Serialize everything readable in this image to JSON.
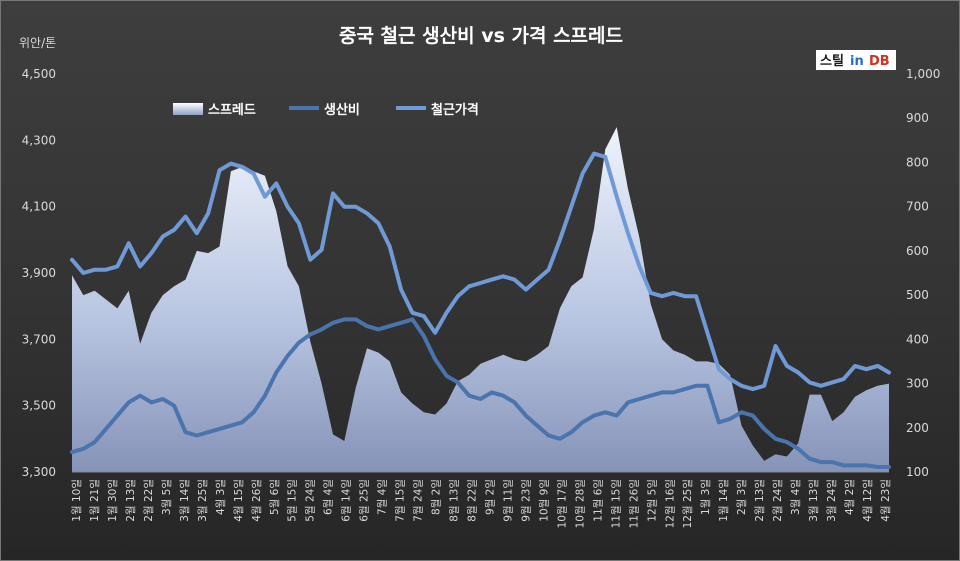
{
  "chart_data": {
    "type": "line",
    "title": "중국 철근 생산비 vs 가격 스프레드",
    "y_left_unit": "위안/톤",
    "y_left_ticks": [
      "3,300",
      "3,500",
      "3,700",
      "3,900",
      "4,100",
      "4,300",
      "4,500"
    ],
    "y_left_range": [
      3300,
      4500
    ],
    "y_right_ticks": [
      "100",
      "200",
      "300",
      "400",
      "500",
      "600",
      "700",
      "800",
      "900",
      "1,000"
    ],
    "y_right_range": [
      100,
      1000
    ],
    "legend_position": "top-left",
    "grid": false,
    "x_labels": [
      "1월 10일",
      "1월 21일",
      "1월 30일",
      "2월 13일",
      "2월 22일",
      "3월 5일",
      "3월 14일",
      "3월 25일",
      "4월 3일",
      "4월 15일",
      "4월 26일",
      "5월 6일",
      "5월 15일",
      "5월 24일",
      "6월 4일",
      "6월 14일",
      "6월 25일",
      "7월 4일",
      "7월 15일",
      "7월 24일",
      "8월 2일",
      "8월 13일",
      "8월 22일",
      "9월 2일",
      "9월 11일",
      "9월 23일",
      "10월 9일",
      "10월 17일",
      "10월 28일",
      "11월 6일",
      "11월 15일",
      "11월 26일",
      "12월 5일",
      "12월 16일",
      "12월 25일",
      "1월 3일",
      "1월 14일",
      "2월 3일",
      "2월 13일",
      "2월 24일",
      "3월 4일",
      "3월 13일",
      "3월 24일",
      "4월 2일",
      "4월 12일",
      "4월 23일"
    ],
    "series": [
      {
        "name": "스프레드",
        "axis": "right",
        "style": "area",
        "color": "#c5d3ec",
        "values": [
          545,
          500,
          510,
          490,
          470,
          510,
          390,
          460,
          500,
          520,
          535,
          600,
          595,
          610,
          780,
          790,
          780,
          770,
          690,
          565,
          520,
          395,
          300,
          185,
          170,
          290,
          380,
          370,
          350,
          280,
          255,
          235,
          230,
          255,
          305,
          320,
          345,
          355,
          365,
          355,
          350,
          365,
          385,
          470,
          520,
          540,
          650,
          830,
          880,
          740,
          630,
          480,
          400,
          375,
          365,
          350,
          350,
          345,
          320,
          205,
          160,
          125,
          140,
          135,
          165,
          275,
          275,
          215,
          235,
          270,
          285,
          295,
          300
        ]
      },
      {
        "name": "생산비",
        "axis": "left",
        "style": "line",
        "color": "#4a74ad",
        "values": [
          3360,
          3370,
          3390,
          3430,
          3470,
          3510,
          3530,
          3510,
          3520,
          3500,
          3420,
          3410,
          3420,
          3430,
          3440,
          3450,
          3480,
          3530,
          3600,
          3650,
          3690,
          3715,
          3730,
          3750,
          3760,
          3760,
          3740,
          3730,
          3740,
          3750,
          3760,
          3710,
          3640,
          3590,
          3570,
          3530,
          3520,
          3540,
          3530,
          3510,
          3470,
          3440,
          3410,
          3400,
          3420,
          3450,
          3470,
          3480,
          3470,
          3510,
          3520,
          3530,
          3540,
          3540,
          3550,
          3560,
          3560,
          3450,
          3460,
          3480,
          3470,
          3430,
          3400,
          3390,
          3370,
          3340,
          3330,
          3330,
          3320,
          3320,
          3320,
          3315,
          3315
        ]
      },
      {
        "name": "철근가격",
        "axis": "left",
        "style": "line",
        "color": "#6f9ad6",
        "values": [
          3940,
          3900,
          3910,
          3910,
          3920,
          3990,
          3920,
          3960,
          4010,
          4030,
          4070,
          4020,
          4080,
          4210,
          4230,
          4220,
          4200,
          4130,
          4170,
          4100,
          4050,
          3940,
          3970,
          4140,
          4100,
          4100,
          4080,
          4050,
          3980,
          3850,
          3780,
          3770,
          3720,
          3780,
          3830,
          3860,
          3870,
          3880,
          3890,
          3880,
          3850,
          3880,
          3910,
          4000,
          4100,
          4200,
          4260,
          4250,
          4130,
          4020,
          3920,
          3840,
          3830,
          3840,
          3830,
          3830,
          3720,
          3610,
          3580,
          3560,
          3550,
          3560,
          3680,
          3620,
          3600,
          3570,
          3560,
          3570,
          3580,
          3620,
          3610,
          3620,
          3600
        ]
      }
    ]
  },
  "logo": {
    "part1": "스틸",
    "part2": "in",
    "part3": "DB"
  }
}
